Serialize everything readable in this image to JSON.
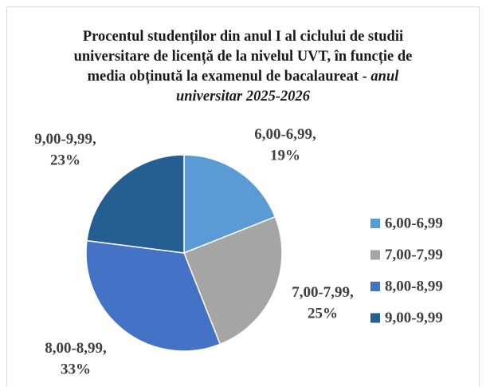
{
  "chart_data": {
    "type": "pie",
    "title": "Procentul studenților din anul I al ciclului de studii universitare de licență de la nivelul UVT, în funcție de media obținută la examenul de bacalaureat -",
    "subtitle": "anul universitar 2025-2026",
    "categories": [
      "6,00-6,99",
      "7,00-7,99",
      "8,00-8,99",
      "9,00-9,99"
    ],
    "values": [
      19,
      25,
      33,
      23
    ],
    "value_labels": [
      "19%",
      "25%",
      "33%",
      "23%"
    ],
    "label_separator": ",",
    "colors": [
      "#5b9bd5",
      "#a5a5a5",
      "#4472c4",
      "#255e91"
    ],
    "legend": "right"
  }
}
